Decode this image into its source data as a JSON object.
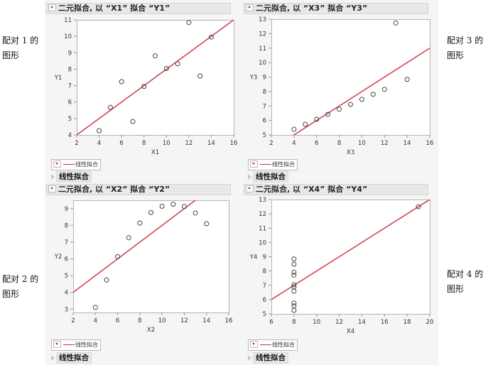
{
  "side_labels": {
    "pair1": [
      "配对 1 的",
      "图形"
    ],
    "pair2": [
      "配对 2 的",
      "图形"
    ],
    "pair3": [
      "配对 3 的",
      "图形"
    ],
    "pair4": [
      "配对 4 的",
      "图形"
    ]
  },
  "reports": [
    {
      "title": "二元拟合, 以 “X1” 拟合 “Y1”",
      "legend_label": "线性拟合",
      "outline_label": "线性拟合",
      "xlabel": "X1",
      "ylabel": "Y1"
    },
    {
      "title": "二元拟合, 以 “X2” 拟合 “Y2”",
      "legend_label": "线性拟合",
      "outline_label": "线性拟合",
      "xlabel": "X2",
      "ylabel": "Y2"
    },
    {
      "title": "二元拟合, 以 “X3” 拟合 “Y3”",
      "legend_label": "线性拟合",
      "outline_label": "线性拟合",
      "xlabel": "X3",
      "ylabel": "Y3"
    },
    {
      "title": "二元拟合, 以 “X4” 拟合 “Y4”",
      "legend_label": "线性拟合",
      "outline_label": "线性拟合",
      "xlabel": "X4",
      "ylabel": "Y4"
    }
  ],
  "icons": {
    "disclosure_open": "disclosure-open-icon",
    "red_triangle": "red-triangle-menu-icon",
    "disclosure_closed": "disclosure-closed-icon"
  },
  "colors": {
    "fit_line": "#d2474f",
    "marker": "#444444",
    "title_bar": "#e8e8e8"
  },
  "chart_data": [
    {
      "type": "scatter",
      "title": "二元拟合, 以 “X1” 拟合 “Y1”",
      "xlabel": "X1",
      "ylabel": "Y1",
      "xlim": [
        2,
        16
      ],
      "ylim": [
        4,
        11
      ],
      "xticks": [
        2,
        4,
        6,
        8,
        10,
        12,
        14,
        16
      ],
      "yticks": [
        4,
        5,
        6,
        7,
        8,
        9,
        10,
        11
      ],
      "x": [
        10,
        8,
        13,
        9,
        11,
        14,
        6,
        4,
        12,
        7,
        5
      ],
      "y": [
        8.04,
        6.95,
        7.58,
        8.81,
        8.33,
        9.96,
        7.24,
        4.26,
        10.84,
        4.82,
        5.68
      ],
      "fit": {
        "label": "线性拟合",
        "intercept": 3.0,
        "slope": 0.5
      }
    },
    {
      "type": "scatter",
      "title": "二元拟合, 以 “X2” 拟合 “Y2”",
      "xlabel": "X2",
      "ylabel": "Y2",
      "xlim": [
        2,
        16
      ],
      "ylim": [
        2.8,
        9.5
      ],
      "xticks": [
        2,
        4,
        6,
        8,
        10,
        12,
        14,
        16
      ],
      "yticks": [
        3,
        4,
        5,
        6,
        7,
        8,
        9
      ],
      "x": [
        10,
        8,
        13,
        9,
        11,
        14,
        6,
        4,
        12,
        7,
        5
      ],
      "y": [
        9.14,
        8.14,
        8.74,
        8.77,
        9.26,
        8.1,
        6.13,
        3.1,
        9.13,
        7.26,
        4.74
      ],
      "fit": {
        "label": "线性拟合",
        "intercept": 3.0,
        "slope": 0.5
      }
    },
    {
      "type": "scatter",
      "title": "二元拟合, 以 “X3” 拟合 “Y3”",
      "xlabel": "X3",
      "ylabel": "Y3",
      "xlim": [
        2,
        16
      ],
      "ylim": [
        5,
        13
      ],
      "xticks": [
        2,
        4,
        6,
        8,
        10,
        12,
        14,
        16
      ],
      "yticks": [
        5,
        6,
        7,
        8,
        9,
        10,
        11,
        12,
        13
      ],
      "x": [
        10,
        8,
        13,
        9,
        11,
        14,
        6,
        4,
        12,
        7,
        5
      ],
      "y": [
        7.46,
        6.77,
        12.74,
        7.11,
        7.81,
        8.84,
        6.08,
        5.39,
        8.15,
        6.42,
        5.73
      ],
      "fit": {
        "label": "线性拟合",
        "intercept": 3.0,
        "slope": 0.5
      }
    },
    {
      "type": "scatter",
      "title": "二元拟合, 以 “X4” 拟合 “Y4”",
      "xlabel": "X4",
      "ylabel": "Y4",
      "xlim": [
        6,
        20
      ],
      "ylim": [
        5,
        13
      ],
      "xticks": [
        6,
        8,
        10,
        12,
        14,
        16,
        18,
        20
      ],
      "yticks": [
        5,
        6,
        7,
        8,
        9,
        10,
        11,
        12,
        13
      ],
      "x": [
        8,
        8,
        8,
        8,
        8,
        8,
        8,
        19,
        8,
        8,
        8
      ],
      "y": [
        6.58,
        5.76,
        7.71,
        8.84,
        8.47,
        7.04,
        5.25,
        12.5,
        5.56,
        7.91,
        6.89
      ],
      "fit": {
        "label": "线性拟合",
        "intercept": 3.0,
        "slope": 0.5
      }
    }
  ]
}
